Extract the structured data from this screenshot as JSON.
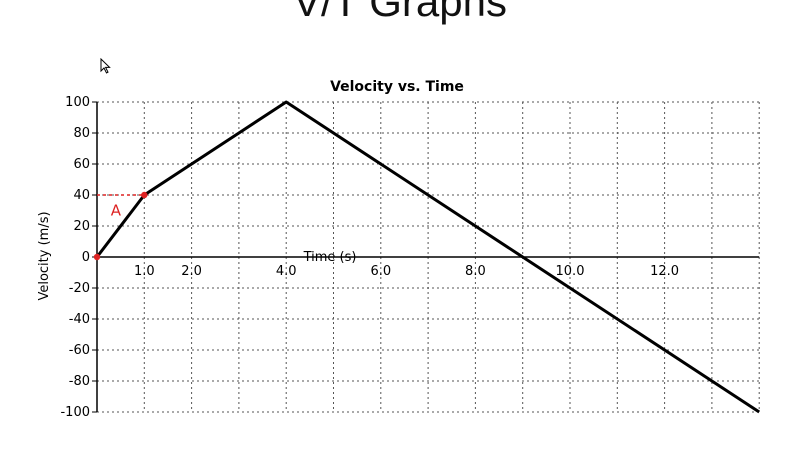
{
  "slide": {
    "title": "V/T Graphs"
  },
  "chart_data": {
    "type": "line",
    "title": "Velocity vs. Time",
    "xlabel": "Time (s)",
    "ylabel": "Velocity (m/s)",
    "xlim": [
      0,
      14
    ],
    "ylim": [
      -100,
      100
    ],
    "x_ticks": [
      1,
      2,
      4,
      6,
      8,
      10,
      12
    ],
    "x_tick_labels": [
      "1.0",
      "2.0",
      "4.0",
      "6.0",
      "8.0",
      "10.0",
      "12.0"
    ],
    "y_ticks": [
      100,
      80,
      60,
      40,
      20,
      0,
      -20,
      -40,
      -60,
      -80,
      -100
    ],
    "y_tick_labels": [
      "100",
      "80",
      "60",
      "40",
      "20",
      "0",
      "-20",
      "-40",
      "-60",
      "-80",
      "-100"
    ],
    "grid": true,
    "series": [
      {
        "x": [
          0,
          1,
          4,
          14
        ],
        "y": [
          0,
          40,
          100,
          -100
        ]
      }
    ],
    "markers": [
      {
        "x": 0,
        "y": 0
      },
      {
        "x": 1,
        "y": 40
      }
    ],
    "annotations": [
      {
        "text": "A",
        "x": 0.4,
        "y": 30
      }
    ],
    "colors": {
      "line": "#000000",
      "grid": "#555555",
      "annotation": "#dd2222"
    }
  }
}
